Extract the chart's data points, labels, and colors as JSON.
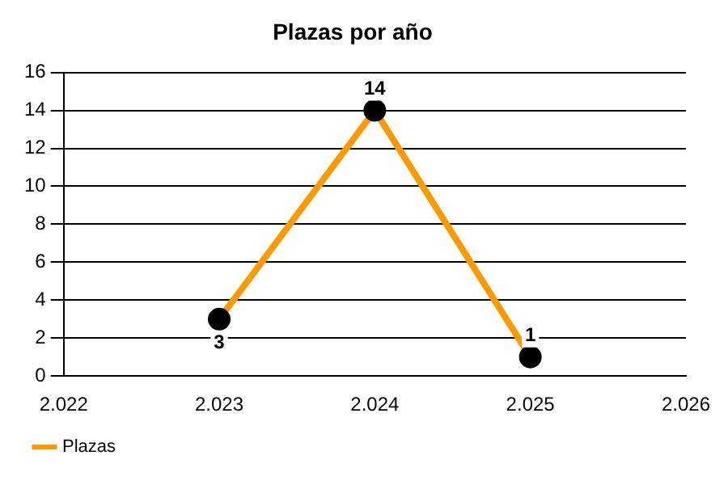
{
  "chart_data": {
    "type": "line",
    "title": "Plazas por año",
    "x": [
      2023,
      2024,
      2025
    ],
    "series": [
      {
        "name": "Plazas",
        "color": "#ff9900",
        "values": [
          3,
          14,
          1
        ]
      }
    ],
    "xlim": [
      2022,
      2026
    ],
    "xticks": [
      {
        "value": 2022,
        "label": "2.022"
      },
      {
        "value": 2023,
        "label": "2.023"
      },
      {
        "value": 2024,
        "label": "2.024"
      },
      {
        "value": 2025,
        "label": "2.025"
      },
      {
        "value": 2026,
        "label": "2.026"
      }
    ],
    "ylim": [
      0,
      16
    ],
    "yticks": [
      0,
      2,
      4,
      6,
      8,
      10,
      12,
      14,
      16
    ],
    "grid": "y",
    "legend": "bottom left",
    "marker": "circle",
    "line_style": "solid",
    "data_labels": true
  }
}
